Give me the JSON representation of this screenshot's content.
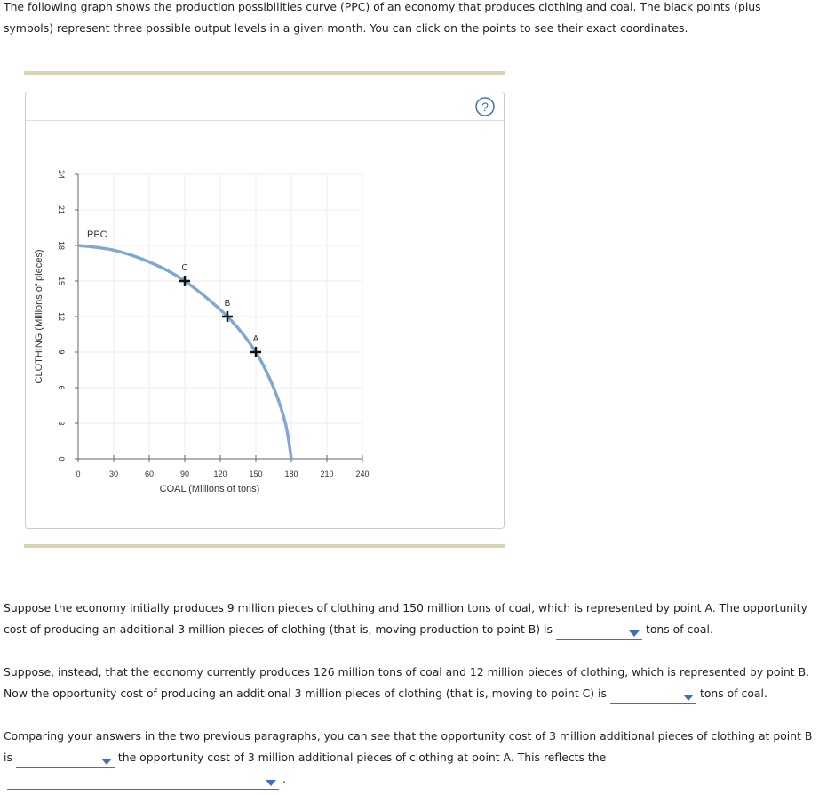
{
  "intro": "The following graph shows the production possibilities curve (PPC) of an economy that produces clothing and coal. The black points (plus symbols) represent three possible output levels in a given month. You can click on the points to see their exact coordinates.",
  "help_icon": "?",
  "chart_data": {
    "type": "line",
    "x_label": "COAL (Millions of tons)",
    "y_label": "CLOTHING (Millions of pieces)",
    "xlim": [
      0,
      240
    ],
    "ylim": [
      0,
      24
    ],
    "xticks": [
      0,
      30,
      60,
      90,
      120,
      150,
      180,
      210,
      240
    ],
    "yticks": [
      0,
      3,
      6,
      9,
      12,
      15,
      18,
      21,
      24
    ],
    "grid": true,
    "series": [
      {
        "name": "PPC",
        "color": "#7fa9d4",
        "x": [
          0,
          30,
          60,
          90,
          126,
          150,
          165,
          175,
          180
        ],
        "values": [
          18,
          17.6,
          16.6,
          15,
          12,
          9,
          6,
          3,
          0
        ]
      }
    ],
    "points": [
      {
        "name": "C",
        "x": 90,
        "y": 15
      },
      {
        "name": "B",
        "x": 126,
        "y": 12
      },
      {
        "name": "A",
        "x": 150,
        "y": 9
      }
    ]
  },
  "questions": [
    {
      "before": "Suppose the economy initially produces 9 million pieces of clothing and 150 million tons of coal, which is represented by point A. The opportunity cost of producing an additional 3 million pieces of clothing (that is, moving production to point B) is",
      "after": "tons of coal."
    },
    {
      "before": "Suppose, instead, that the economy currently produces 126 million tons of coal and 12 million pieces of clothing, which is represented by point B. Now the opportunity cost of producing an additional 3 million pieces of clothing (that is, moving to point C) is",
      "after": "tons of coal."
    },
    {
      "before": "Comparing your answers in the two previous paragraphs, you can see that the opportunity cost of 3 million additional pieces of clothing at point B is",
      "middle": "the opportunity cost of 3 million additional pieces of clothing at point A. This reflects the",
      "after": "."
    }
  ]
}
